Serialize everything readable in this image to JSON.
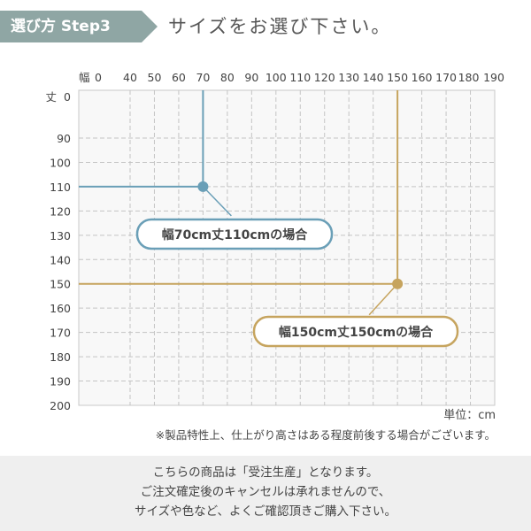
{
  "header": {
    "badge": "選び方 Step3",
    "title": "サイズをお選び下さい。"
  },
  "chart_data": {
    "type": "line",
    "x_axis_label": "幅",
    "y_axis_label": "丈",
    "x_ticks": [
      0,
      40,
      50,
      60,
      70,
      80,
      90,
      100,
      110,
      120,
      130,
      140,
      150,
      160,
      170,
      180,
      190
    ],
    "y_ticks": [
      0,
      90,
      100,
      110,
      120,
      130,
      140,
      150,
      160,
      170,
      180,
      190,
      200
    ],
    "xlim": [
      0,
      190
    ],
    "ylim": [
      0,
      200
    ],
    "grid": true,
    "markers": [
      {
        "x": 70,
        "y": 110,
        "label": "幅70cm丈110cmの場合",
        "color": "#6a9fb7"
      },
      {
        "x": 150,
        "y": 150,
        "label": "幅150cm丈150cmの場合",
        "color": "#c6a45e"
      }
    ]
  },
  "unit": "単位：cm",
  "note": "※製品特性上、仕上がり高さはある程度前後する場合がございます。",
  "footer": [
    "こちらの商品は「受注生産」となります。",
    "ご注文確定後のキャンセルは承れませんので、",
    "サイズや色など、よくご確認頂きご購入下さい。"
  ]
}
